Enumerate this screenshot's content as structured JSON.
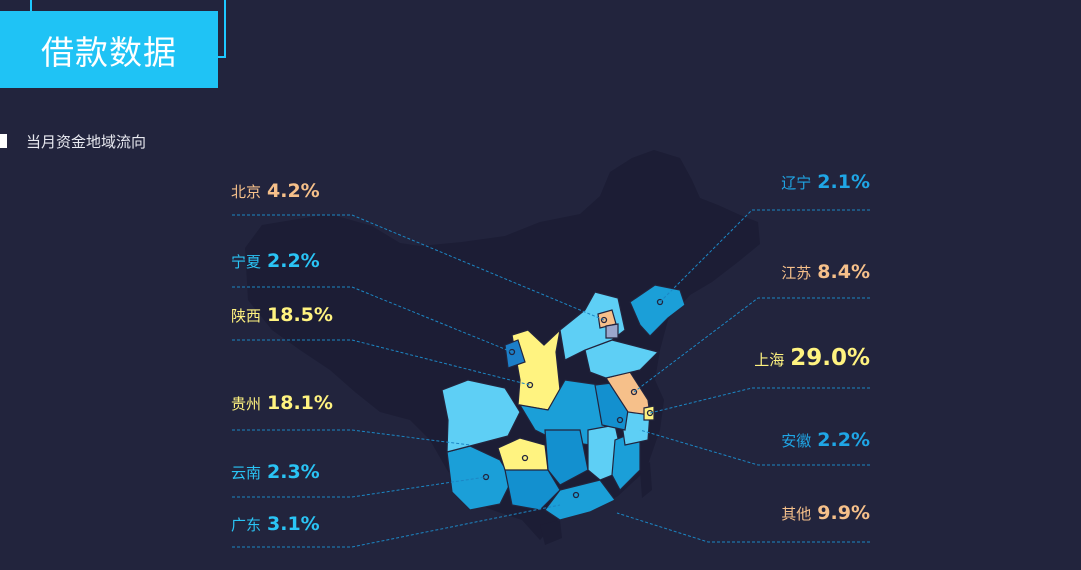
{
  "header": {
    "title": "借款数据"
  },
  "section": {
    "subtitle": "当月资金地域流向"
  },
  "colors": {
    "background": "#22243d",
    "accent": "#1fc3f5",
    "yellow": "#fff380",
    "orange": "#f6c08a",
    "blue_label": "#1fa6e6",
    "cyan_label": "#2ac4f5"
  },
  "regions": [
    {
      "name": "北京",
      "value": "4.2%",
      "side": "left"
    },
    {
      "name": "宁夏",
      "value": "2.2%",
      "side": "left"
    },
    {
      "name": "陕西",
      "value": "18.5%",
      "side": "left"
    },
    {
      "name": "贵州",
      "value": "18.1%",
      "side": "left"
    },
    {
      "name": "云南",
      "value": "2.3%",
      "side": "left"
    },
    {
      "name": "广东",
      "value": "3.1%",
      "side": "left"
    },
    {
      "name": "辽宁",
      "value": "2.1%",
      "side": "right"
    },
    {
      "name": "江苏",
      "value": "8.4%",
      "side": "right"
    },
    {
      "name": "上海",
      "value": "29.0%",
      "side": "right"
    },
    {
      "name": "安徽",
      "value": "2.2%",
      "side": "right"
    },
    {
      "name": "其他",
      "value": "9.9%",
      "side": "right"
    }
  ]
}
